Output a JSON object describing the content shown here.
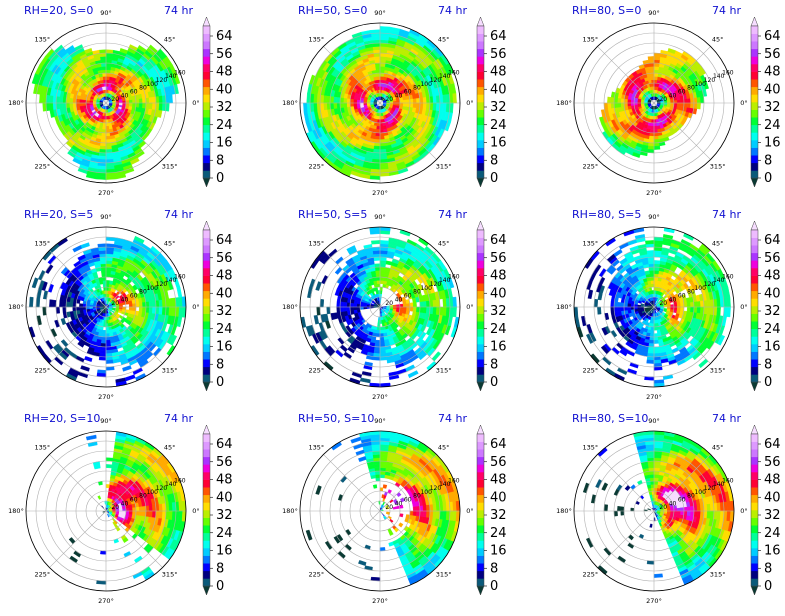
{
  "chart_data": {
    "type": "polar-contourf-grid",
    "theta_ticks": [
      "0°",
      "45°",
      "90°",
      "135°",
      "180°",
      "225°",
      "270°",
      "315°"
    ],
    "radius_ticks": [
      20,
      40,
      60,
      80,
      100,
      120,
      140,
      160
    ],
    "colorbar": {
      "ticks": [
        0,
        8,
        16,
        24,
        32,
        40,
        48,
        56,
        64
      ],
      "levels": [
        0,
        4,
        8,
        12,
        16,
        20,
        24,
        28,
        32,
        36,
        40,
        44,
        48,
        52,
        56,
        60,
        64,
        68
      ],
      "colors": [
        "#0a3a33",
        "#0a5a7a",
        "#00007f",
        "#0000ff",
        "#0077ff",
        "#00ccff",
        "#00ffee",
        "#00ff99",
        "#00ff33",
        "#66ff00",
        "#bbee00",
        "#ffdd00",
        "#ffaa00",
        "#ff5500",
        "#ff0033",
        "#ff0066",
        "#ee00dd",
        "#aa33ff",
        "#cc77ff",
        "#dd99ff",
        "#eebbff",
        "#f6ddff"
      ],
      "extend": "both"
    },
    "panels": [
      {
        "title": "RH=20, S=0",
        "time": "74 hr"
      },
      {
        "title": "RH=50, S=0",
        "time": "74 hr"
      },
      {
        "title": "RH=80, S=0",
        "time": "74 hr"
      },
      {
        "title": "RH=20, S=5",
        "time": "74 hr"
      },
      {
        "title": "RH=50, S=5",
        "time": "74 hr"
      },
      {
        "title": "RH=80, S=5",
        "time": "74 hr"
      },
      {
        "title": "RH=20, S=10",
        "time": "74 hr"
      },
      {
        "title": "RH=50, S=10",
        "time": "74 hr"
      },
      {
        "title": "RH=80, S=10",
        "time": "74 hr"
      }
    ]
  }
}
